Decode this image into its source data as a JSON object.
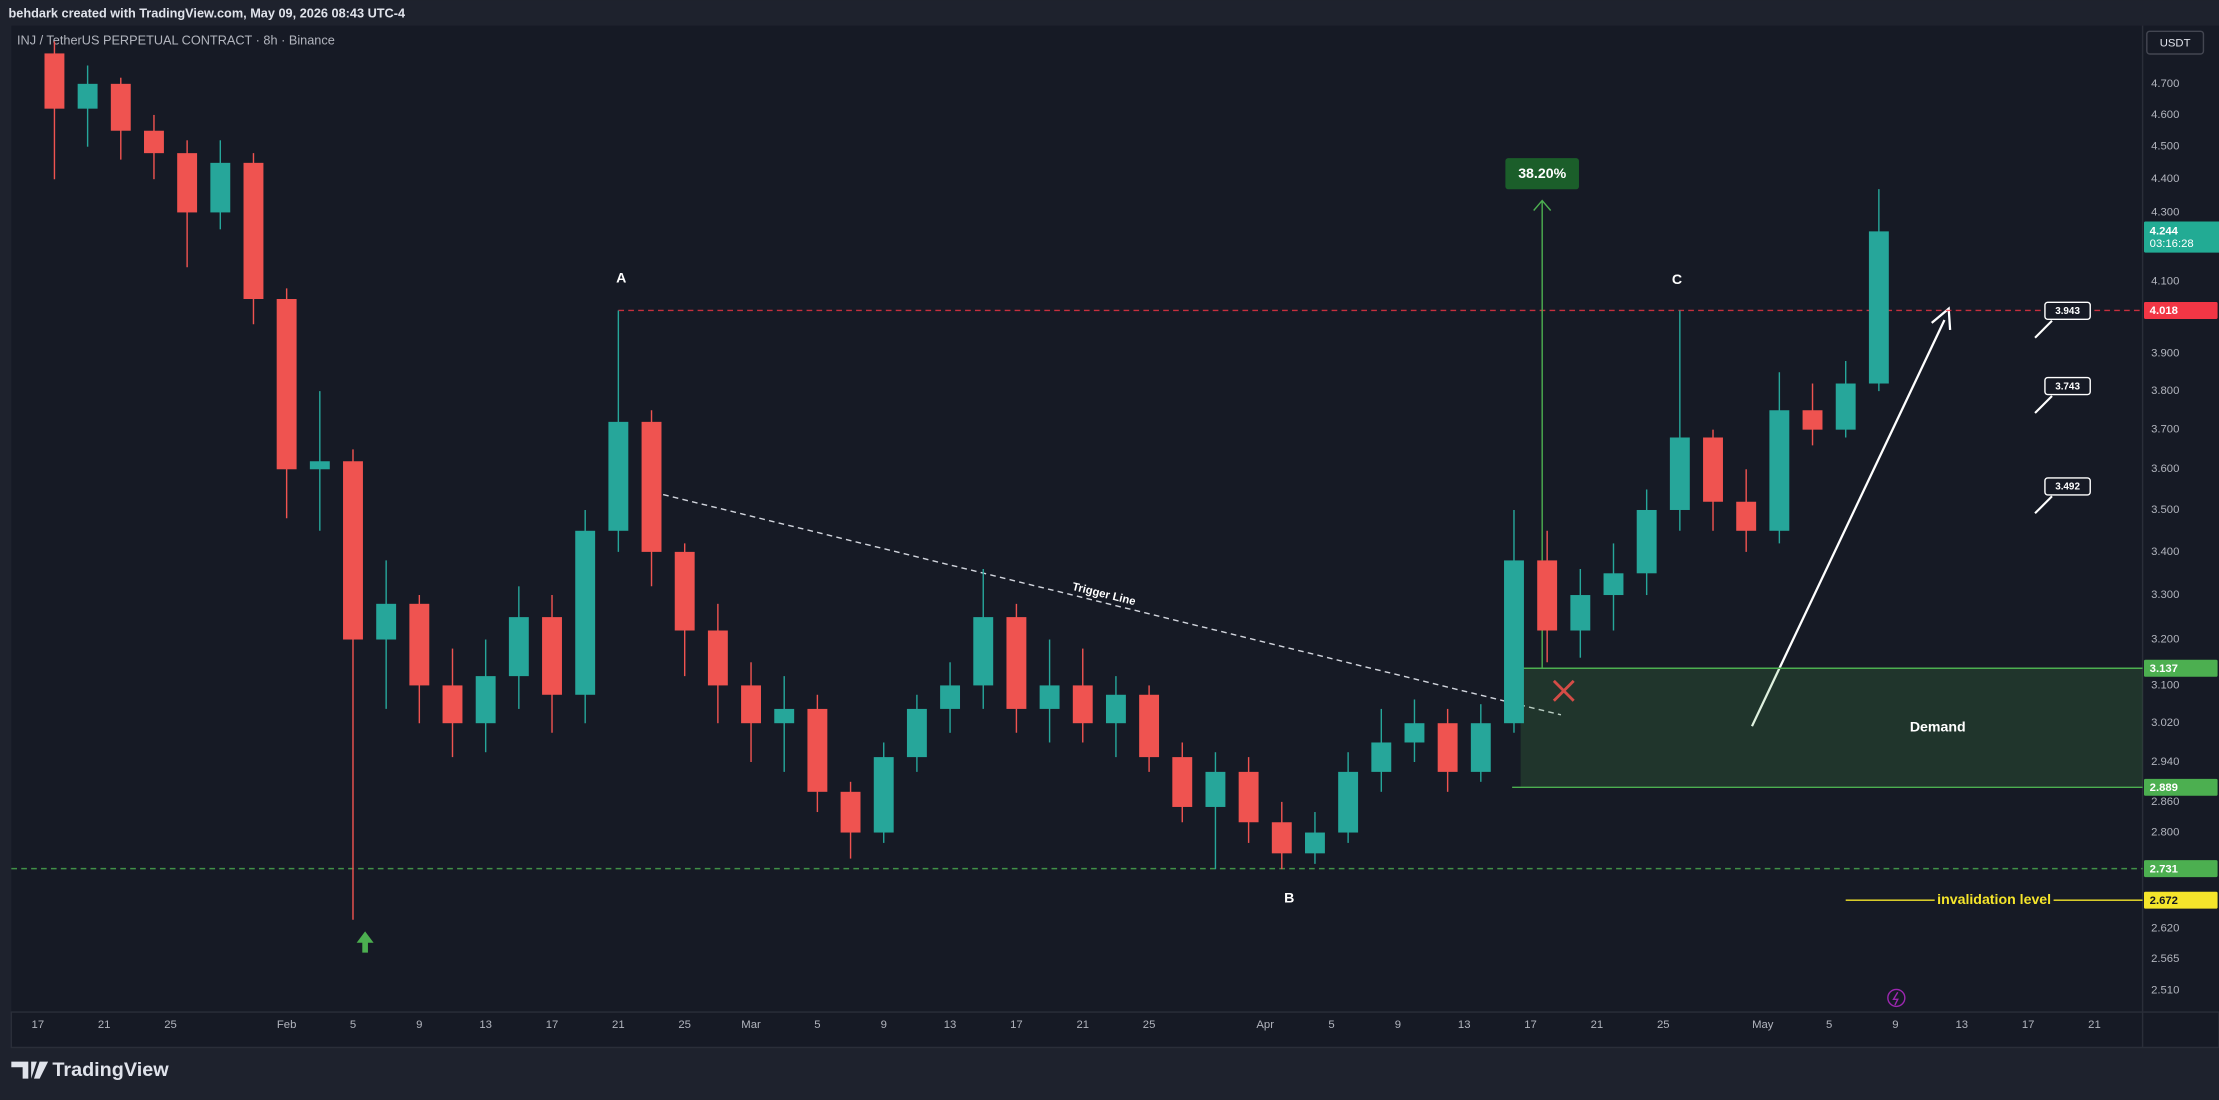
{
  "header": "behdark created with TradingView.com, May 09, 2026 08:43 UTC-4",
  "footer": {
    "brand": "TradingView"
  },
  "chart_data": {
    "type": "candlestick",
    "title": "INJ / TetherUS PERPETUAL CONTRACT · 8h · Binance",
    "currency": "USDT",
    "log_scale": true,
    "grid": false,
    "up_color": "#26a69a",
    "down_color": "#ef5350",
    "x": [
      1,
      3,
      5,
      7,
      9,
      11,
      13,
      15,
      17,
      19,
      21,
      23,
      25,
      27,
      29,
      31,
      33,
      35,
      37,
      39,
      41,
      43,
      45,
      47,
      49,
      51,
      53,
      55,
      57,
      59,
      61,
      63,
      65,
      67,
      69,
      71,
      73,
      75,
      77,
      79,
      81,
      83,
      85,
      87,
      89,
      91,
      93,
      95,
      97,
      99,
      101,
      103,
      105,
      107,
      109,
      111
    ],
    "open": [
      4.8,
      4.62,
      4.7,
      4.55,
      4.48,
      4.3,
      4.45,
      4.05,
      3.6,
      3.62,
      3.2,
      3.28,
      3.1,
      3.02,
      3.12,
      3.25,
      3.08,
      3.45,
      3.72,
      3.4,
      3.22,
      3.1,
      3.02,
      3.05,
      2.88,
      2.8,
      2.95,
      3.05,
      3.1,
      3.25,
      3.05,
      3.1,
      3.02,
      3.08,
      2.95,
      2.85,
      2.92,
      2.82,
      2.76,
      2.8,
      2.92,
      2.98,
      3.02,
      2.92,
      3.02,
      3.38,
      3.22,
      3.3,
      3.35,
      3.5,
      3.68,
      3.52,
      3.45,
      3.75,
      3.7,
      3.82
    ],
    "high": [
      4.84,
      4.76,
      4.72,
      4.6,
      4.52,
      4.52,
      4.48,
      4.08,
      3.8,
      3.65,
      3.38,
      3.3,
      3.18,
      3.2,
      3.32,
      3.3,
      3.5,
      4.018,
      3.75,
      3.42,
      3.28,
      3.15,
      3.12,
      3.08,
      2.9,
      2.98,
      3.08,
      3.15,
      3.36,
      3.28,
      3.2,
      3.18,
      3.12,
      3.1,
      2.98,
      2.96,
      2.95,
      2.86,
      2.84,
      2.96,
      3.05,
      3.07,
      3.05,
      3.06,
      3.5,
      3.45,
      3.36,
      3.42,
      3.55,
      4.018,
      3.7,
      3.6,
      3.85,
      3.82,
      3.88,
      4.37
    ],
    "low": [
      4.4,
      4.5,
      4.46,
      4.4,
      4.14,
      4.25,
      3.98,
      3.48,
      3.45,
      2.636,
      3.05,
      3.02,
      2.95,
      2.96,
      3.05,
      3.0,
      3.02,
      3.4,
      3.32,
      3.12,
      3.02,
      2.94,
      2.92,
      2.84,
      2.75,
      2.78,
      2.92,
      3.0,
      3.05,
      3.0,
      2.98,
      2.98,
      2.95,
      2.92,
      2.82,
      2.73,
      2.78,
      2.73,
      2.74,
      2.78,
      2.88,
      2.94,
      2.88,
      2.9,
      3.0,
      3.15,
      3.16,
      3.22,
      3.3,
      3.45,
      3.45,
      3.4,
      3.42,
      3.66,
      3.68,
      3.8
    ],
    "close": [
      4.62,
      4.7,
      4.55,
      4.48,
      4.3,
      4.45,
      4.05,
      3.6,
      3.62,
      3.2,
      3.28,
      3.1,
      3.02,
      3.12,
      3.25,
      3.08,
      3.45,
      3.72,
      3.4,
      3.22,
      3.1,
      3.02,
      3.05,
      2.88,
      2.8,
      2.95,
      3.05,
      3.1,
      3.25,
      3.05,
      3.1,
      3.02,
      3.08,
      2.95,
      2.85,
      2.92,
      2.82,
      2.76,
      2.8,
      2.92,
      2.98,
      3.02,
      2.92,
      3.02,
      3.38,
      3.22,
      3.3,
      3.35,
      3.5,
      3.68,
      3.52,
      3.45,
      3.75,
      3.7,
      3.82,
      4.244
    ],
    "xlim": [
      -1.6,
      126.9
    ],
    "xticks": [
      {
        "value": 0,
        "label": "17"
      },
      {
        "value": 4,
        "label": "21"
      },
      {
        "value": 8,
        "label": "25"
      },
      {
        "value": 15,
        "label": "Feb"
      },
      {
        "value": 19,
        "label": "5"
      },
      {
        "value": 23,
        "label": "9"
      },
      {
        "value": 27,
        "label": "13"
      },
      {
        "value": 31,
        "label": "17"
      },
      {
        "value": 35,
        "label": "21"
      },
      {
        "value": 39,
        "label": "25"
      },
      {
        "value": 43,
        "label": "Mar"
      },
      {
        "value": 47,
        "label": "5"
      },
      {
        "value": 51,
        "label": "9"
      },
      {
        "value": 55,
        "label": "13"
      },
      {
        "value": 59,
        "label": "17"
      },
      {
        "value": 63,
        "label": "21"
      },
      {
        "value": 67,
        "label": "25"
      },
      {
        "value": 74,
        "label": "Apr"
      },
      {
        "value": 78,
        "label": "5"
      },
      {
        "value": 82,
        "label": "9"
      },
      {
        "value": 86,
        "label": "13"
      },
      {
        "value": 90,
        "label": "17"
      },
      {
        "value": 94,
        "label": "21"
      },
      {
        "value": 98,
        "label": "25"
      },
      {
        "value": 104,
        "label": "May"
      },
      {
        "value": 108,
        "label": "5"
      },
      {
        "value": 112,
        "label": "9"
      },
      {
        "value": 116,
        "label": "13"
      },
      {
        "value": 120,
        "label": "17"
      },
      {
        "value": 124,
        "label": "21"
      }
    ],
    "ylim": [
      2.473,
      4.893
    ],
    "yticks": [
      {
        "value": 4.7,
        "label": "4.700"
      },
      {
        "value": 4.6,
        "label": "4.600"
      },
      {
        "value": 4.5,
        "label": "4.500"
      },
      {
        "value": 4.4,
        "label": "4.400"
      },
      {
        "value": 4.3,
        "label": "4.300"
      },
      {
        "value": 4.1,
        "label": "4.100"
      },
      {
        "value": 3.9,
        "label": "3.900"
      },
      {
        "value": 3.8,
        "label": "3.800"
      },
      {
        "value": 3.7,
        "label": "3.700"
      },
      {
        "value": 3.6,
        "label": "3.600"
      },
      {
        "value": 3.5,
        "label": "3.500"
      },
      {
        "value": 3.4,
        "label": "3.400"
      },
      {
        "value": 3.3,
        "label": "3.300"
      },
      {
        "value": 3.2,
        "label": "3.200"
      },
      {
        "value": 3.1,
        "label": "3.100"
      },
      {
        "value": 3.02,
        "label": "3.020"
      },
      {
        "value": 2.94,
        "label": "2.940"
      },
      {
        "value": 2.86,
        "label": "2.860"
      },
      {
        "value": 2.8,
        "label": "2.800"
      },
      {
        "value": 2.62,
        "label": "2.620"
      },
      2.565,
      {
        "value": 2.51,
        "label": "2.510"
      }
    ],
    "last_price": {
      "value": 4.244,
      "countdown": "03:16:28",
      "color": "#22ab94"
    },
    "levels": [
      {
        "value": 4.018,
        "from_x": 35,
        "color": "#f23645"
      },
      {
        "value": 2.731,
        "color": "#4caf50"
      }
    ],
    "demand_zone": {
      "label": "Demand",
      "top": 3.137,
      "bottom": 2.889,
      "from_x": 89.4,
      "color": "#4caf50"
    },
    "invalidation": {
      "label": "invalidation level",
      "value": 2.672,
      "from_x": 109,
      "color": "#f5e52b"
    },
    "targets": [
      3.943,
      3.743,
      3.492
    ],
    "measure": {
      "from": 3.137,
      "x": 90.7,
      "percent": 38.2,
      "value_label": "38.20%",
      "color": "#4caf50"
    },
    "annotations": {
      "points": [
        "A",
        "B",
        "C"
      ],
      "trigger_line": "Trigger Line"
    }
  }
}
